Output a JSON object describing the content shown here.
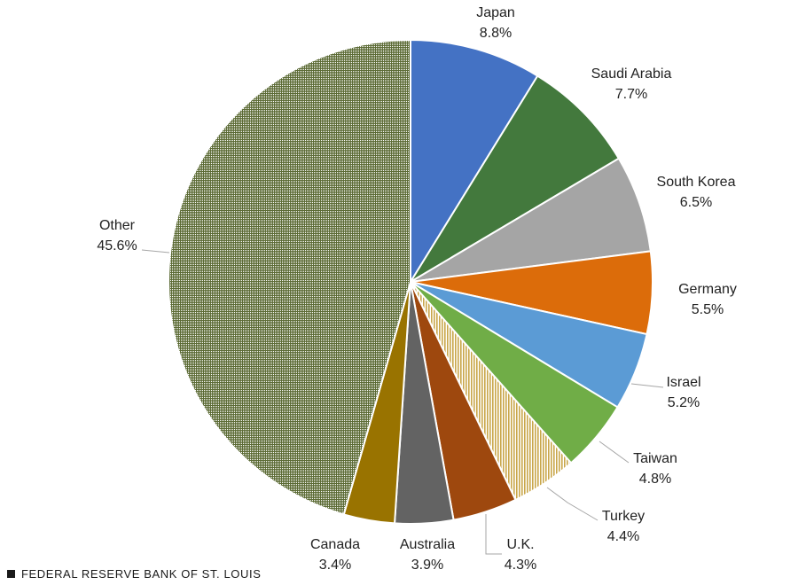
{
  "chart_data": {
    "type": "pie",
    "title": "",
    "start_angle_deg": 0,
    "direction": "clockwise",
    "slices": [
      {
        "label": "Japan",
        "value": 8.8,
        "display": "8.8%",
        "color": "#4472c4",
        "pattern": "solid"
      },
      {
        "label": "Saudi Arabia",
        "value": 7.7,
        "display": "7.7%",
        "color": "#43793d",
        "pattern": "solid"
      },
      {
        "label": "South Korea",
        "value": 6.5,
        "display": "6.5%",
        "color": "#a5a5a5",
        "pattern": "solid"
      },
      {
        "label": "Germany",
        "value": 5.5,
        "display": "5.5%",
        "color": "#dc6c0a",
        "pattern": "solid"
      },
      {
        "label": "Israel",
        "value": 5.2,
        "display": "5.2%",
        "color": "#5b9bd5",
        "pattern": "solid"
      },
      {
        "label": "Taiwan",
        "value": 4.8,
        "display": "4.8%",
        "color": "#70ad47",
        "pattern": "solid"
      },
      {
        "label": "Turkey",
        "value": 4.4,
        "display": "4.4%",
        "color": "#c9a64a",
        "pattern": "vertical-stripes"
      },
      {
        "label": "U.K.",
        "value": 4.3,
        "display": "4.3%",
        "color": "#9e480e",
        "pattern": "solid"
      },
      {
        "label": "Australia",
        "value": 3.9,
        "display": "3.9%",
        "color": "#636363",
        "pattern": "solid"
      },
      {
        "label": "Canada",
        "value": 3.4,
        "display": "3.4%",
        "color": "#997300",
        "pattern": "solid"
      },
      {
        "label": "Other",
        "value": 45.6,
        "display": "45.6%",
        "color": "#5c6b35",
        "pattern": "dotted"
      }
    ]
  },
  "footer": {
    "source": "FEDERAL RESERVE BANK OF ST. LOUIS"
  }
}
